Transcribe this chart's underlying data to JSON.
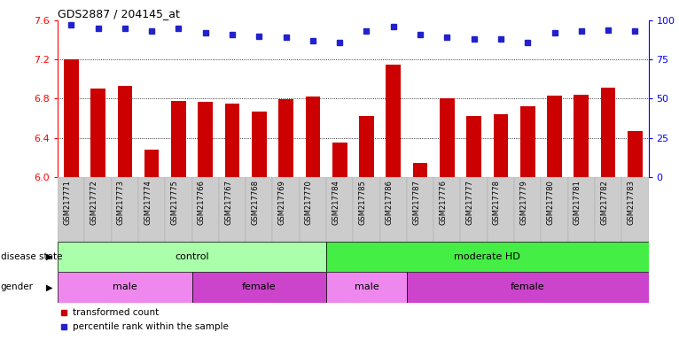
{
  "title": "GDS2887 / 204145_at",
  "samples": [
    "GSM217771",
    "GSM217772",
    "GSM217773",
    "GSM217774",
    "GSM217775",
    "GSM217766",
    "GSM217767",
    "GSM217768",
    "GSM217769",
    "GSM217770",
    "GSM217784",
    "GSM217785",
    "GSM217786",
    "GSM217787",
    "GSM217776",
    "GSM217777",
    "GSM217778",
    "GSM217779",
    "GSM217780",
    "GSM217781",
    "GSM217782",
    "GSM217783"
  ],
  "bar_values": [
    7.2,
    6.9,
    6.93,
    6.28,
    6.78,
    6.77,
    6.75,
    6.67,
    6.79,
    6.82,
    6.35,
    6.62,
    7.15,
    6.14,
    6.8,
    6.62,
    6.64,
    6.72,
    6.83,
    6.84,
    6.91,
    6.47
  ],
  "percentile_values": [
    97,
    95,
    95,
    93,
    95,
    92,
    91,
    90,
    89,
    87,
    86,
    93,
    96,
    91,
    89,
    88,
    88,
    86,
    92,
    93,
    94,
    93
  ],
  "bar_color": "#cc0000",
  "percentile_color": "#2222cc",
  "ylim_left": [
    6.0,
    7.6
  ],
  "ylim_right": [
    0,
    100
  ],
  "yticks_left": [
    6.0,
    6.4,
    6.8,
    7.2,
    7.6
  ],
  "yticks_right": [
    0,
    25,
    50,
    75,
    100
  ],
  "grid_values": [
    6.4,
    6.8,
    7.2
  ],
  "disease_state_groups": [
    {
      "label": "control",
      "start": 0,
      "end": 10,
      "color": "#aaffaa"
    },
    {
      "label": "moderate HD",
      "start": 10,
      "end": 22,
      "color": "#44ee44"
    }
  ],
  "gender_groups": [
    {
      "label": "male",
      "start": 0,
      "end": 5,
      "color": "#ee88ee"
    },
    {
      "label": "female",
      "start": 5,
      "end": 10,
      "color": "#cc44cc"
    },
    {
      "label": "male",
      "start": 10,
      "end": 13,
      "color": "#ee88ee"
    },
    {
      "label": "female",
      "start": 13,
      "end": 22,
      "color": "#cc44cc"
    }
  ],
  "bar_width": 0.55,
  "background_color": "#ffffff",
  "cell_bg_color": "#cccccc",
  "legend_items": [
    {
      "label": "transformed count",
      "color": "#cc0000"
    },
    {
      "label": "percentile rank within the sample",
      "color": "#2222cc"
    }
  ]
}
